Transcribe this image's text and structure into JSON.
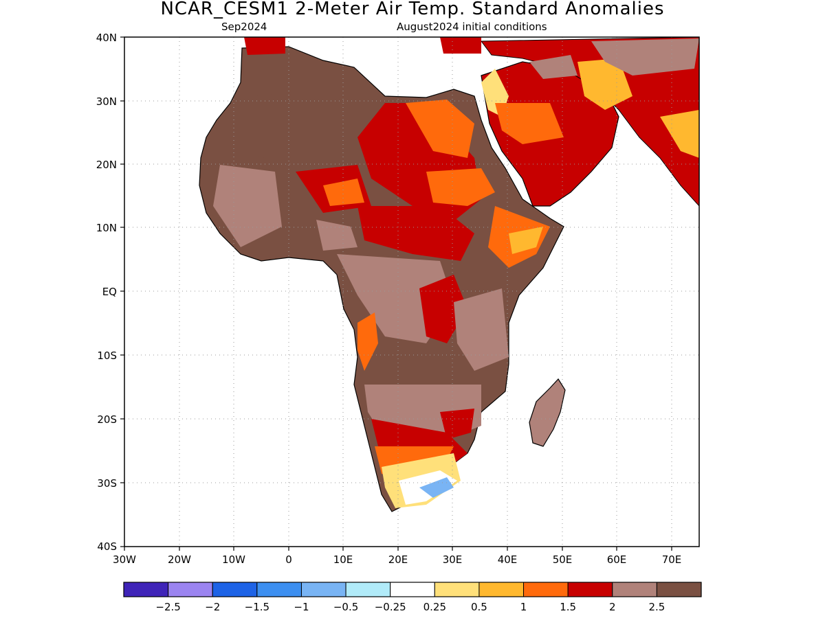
{
  "title": "NCAR_CESM1 2-Meter Air Temp. Standard Anomalies",
  "subtitle_left": "Sep2024",
  "subtitle_right": "August2024 initial conditions",
  "map": {
    "lat_labels": [
      "40N",
      "30N",
      "20N",
      "10N",
      "EQ",
      "10S",
      "20S",
      "30S",
      "40S"
    ],
    "lon_labels": [
      "30W",
      "20W",
      "10W",
      "0",
      "10E",
      "20E",
      "30E",
      "40E",
      "50E",
      "60E",
      "70E"
    ]
  },
  "colorbar": {
    "colors": [
      "#3f24b8",
      "#9b84f0",
      "#1e63e6",
      "#3d8ff0",
      "#79b4f4",
      "#b1ebf9",
      "#ffffff",
      "#ffe07a",
      "#ffb82f",
      "#ff6a0c",
      "#c70000",
      "#b0827a",
      "#7a5042"
    ],
    "labels": [
      "-2.5",
      "-2",
      "-1.5",
      "-1",
      "-0.5",
      "-0.25",
      "0.25",
      "0.5",
      "1",
      "1.5",
      "2",
      "2.5"
    ]
  }
}
